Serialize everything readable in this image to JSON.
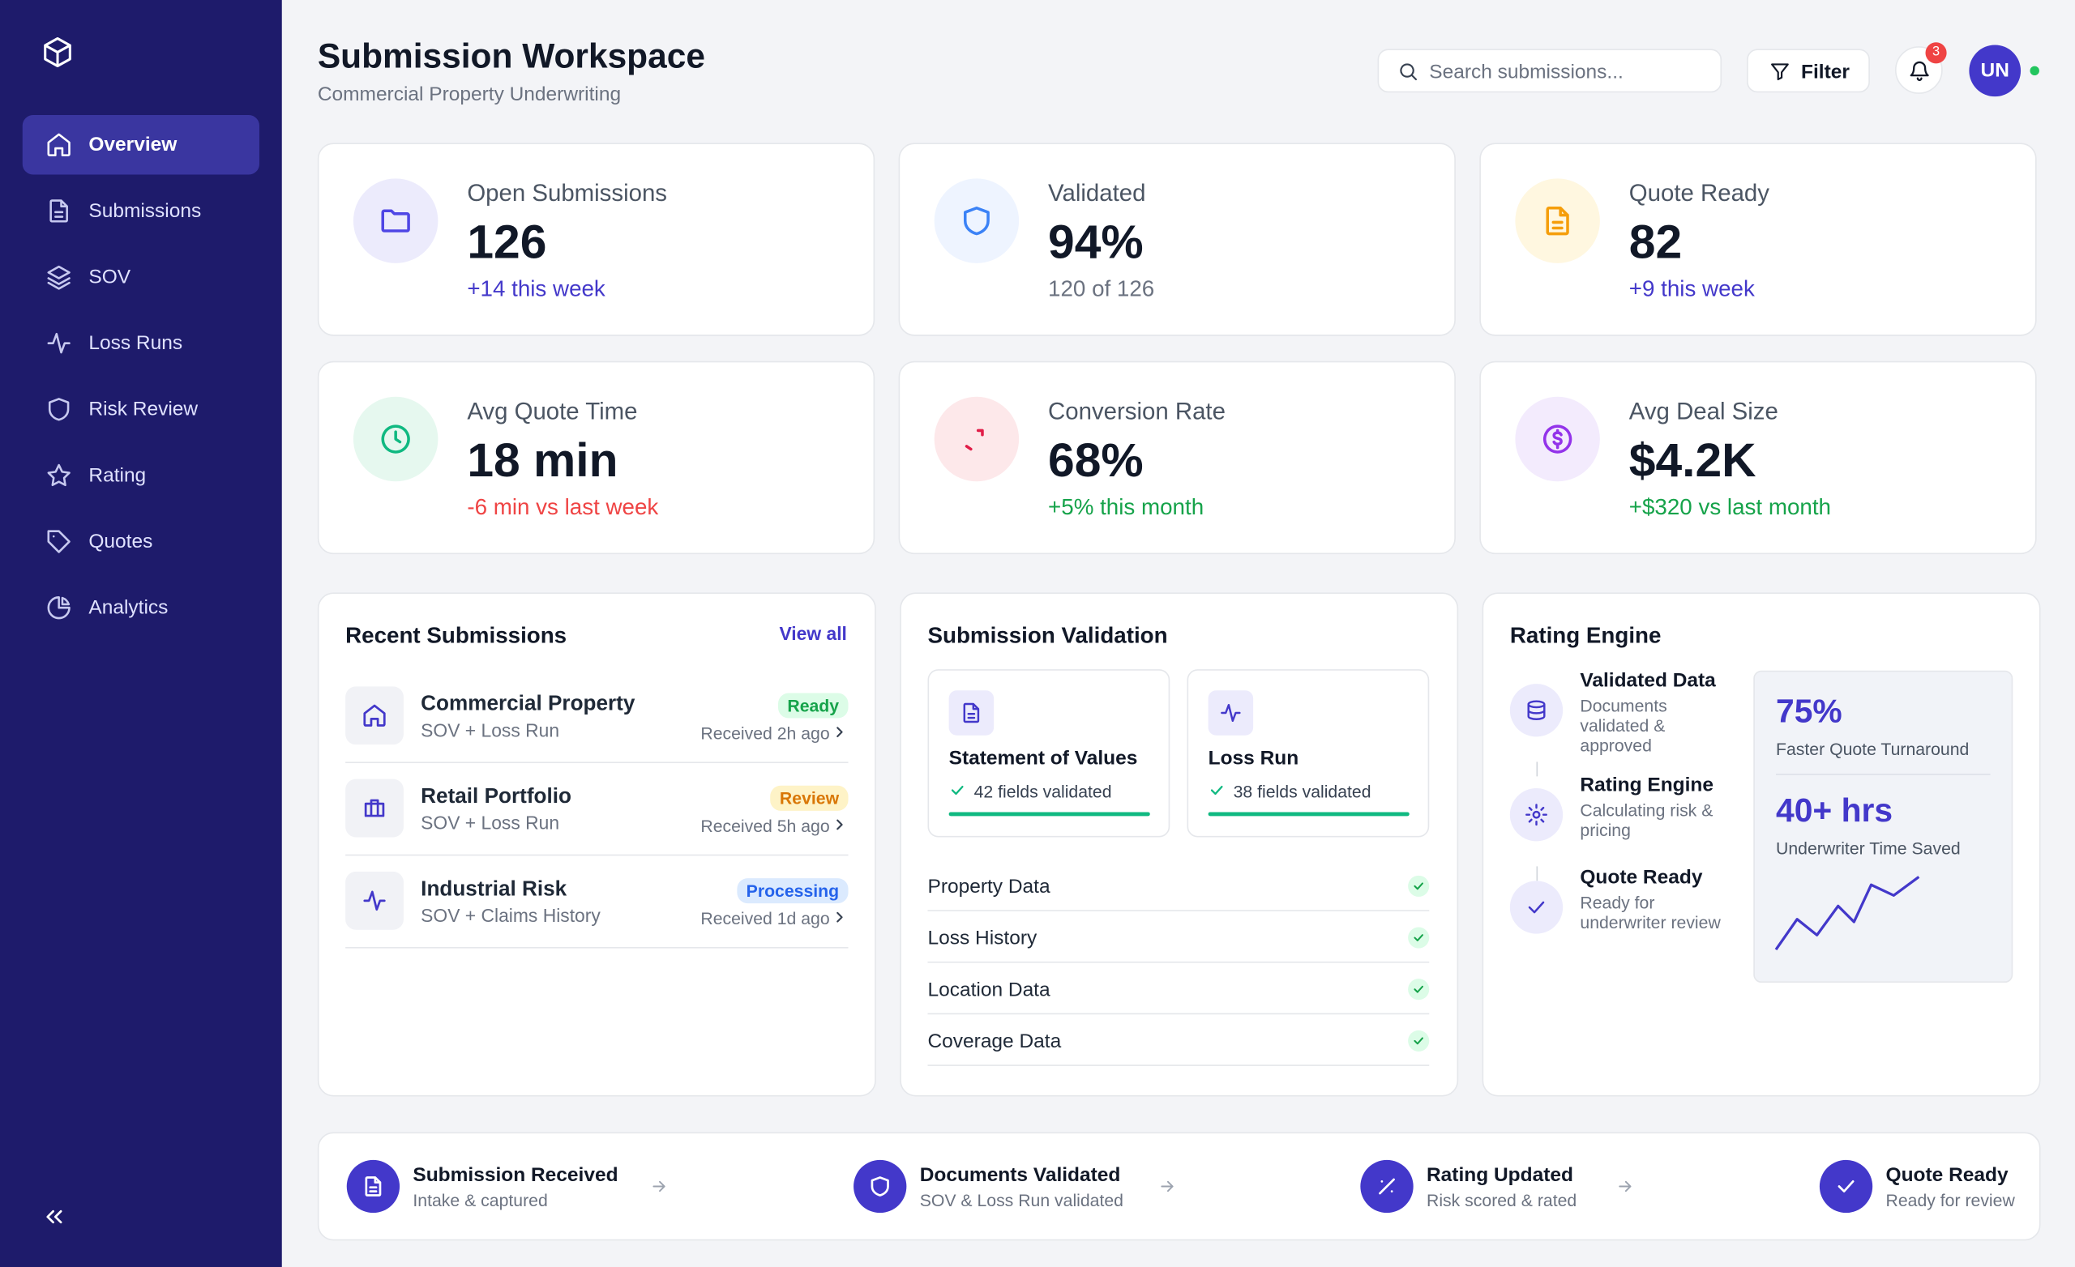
{
  "sidebar": {
    "nav": [
      "Overview",
      "Submissions",
      "SOV",
      "Loss Runs",
      "Risk Review",
      "Rating",
      "Quotes",
      "Analytics"
    ]
  },
  "header": {
    "title": "Submission Workspace",
    "subtitle": "Commercial Property Underwriting",
    "search_placeholder": "Search submissions...",
    "filter": "Filter",
    "notifications": 3,
    "avatar": "UN"
  },
  "stats": [
    {
      "label": "Open Submissions",
      "value": 126,
      "note": "+14 this week"
    },
    {
      "label": "Validated",
      "value": "94%",
      "note": "120 of 126"
    },
    {
      "label": "Quote Ready",
      "value": 82,
      "note": "+9 this week"
    },
    {
      "label": "Avg Quote Time",
      "value": "18 min",
      "note": "-6 min vs last week"
    },
    {
      "label": "Conversion Rate",
      "value": "68%",
      "note": "+5% this month"
    },
    {
      "label": "Avg Deal Size",
      "value": "$4.2K",
      "note": "+$320 vs last month"
    }
  ],
  "recent": {
    "title": "Recent Submissions",
    "view_all": "View all",
    "items": [
      {
        "name": "Commercial Property",
        "detail": "SOV + Loss Run",
        "status": "Ready",
        "received": "Received 2h ago"
      },
      {
        "name": "Retail Portfolio",
        "detail": "SOV + Loss Run",
        "status": "Review",
        "received": "Received 5h ago"
      },
      {
        "name": "Industrial Risk",
        "detail": "SOV + Claims History",
        "status": "Processing",
        "received": "Received 1d ago"
      }
    ]
  },
  "validation": {
    "title": "Submission Validation",
    "cards": [
      {
        "name": "Statement of Values",
        "fields": "42 fields validated"
      },
      {
        "name": "Loss Run",
        "fields": "38 fields validated"
      }
    ],
    "checks": [
      "Property Data",
      "Loss History",
      "Location Data",
      "Coverage Data"
    ]
  },
  "rating_engine": {
    "title": "Rating Engine",
    "steps": [
      {
        "name": "Validated Data",
        "desc": "Documents validated & approved"
      },
      {
        "name": "Rating Engine",
        "desc": "Calculating risk & pricing"
      },
      {
        "name": "Quote Ready",
        "desc": "Ready for underwriter review"
      }
    ],
    "metrics": [
      {
        "value": "75%",
        "label": "Faster Quote Turnaround"
      },
      {
        "value": "40+ hrs",
        "label": "Underwriter Time Saved"
      }
    ]
  },
  "pipeline": [
    {
      "name": "Submission Received",
      "desc": "Intake & captured"
    },
    {
      "name": "Documents Validated",
      "desc": "SOV & Loss Run validated"
    },
    {
      "name": "Rating Updated",
      "desc": "Risk scored & rated"
    },
    {
      "name": "Quote Ready",
      "desc": "Ready for review"
    }
  ]
}
